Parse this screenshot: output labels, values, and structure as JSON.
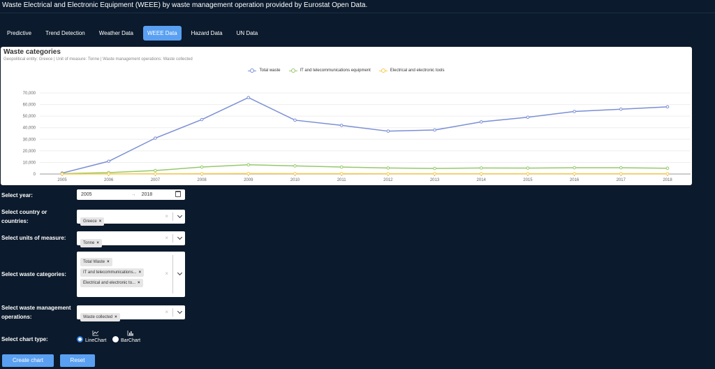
{
  "page_title": "Waste Electrical and Electronic Equipment (WEEE) by waste management operation provided by Eurostat Open Data.",
  "tabs": [
    {
      "label": "Predictive",
      "active": false
    },
    {
      "label": "Trend Detection",
      "active": false
    },
    {
      "label": "Weather Data",
      "active": false
    },
    {
      "label": "WEEE Data",
      "active": true
    },
    {
      "label": "Hazard Data",
      "active": false
    },
    {
      "label": "UN Data",
      "active": false
    }
  ],
  "chart": {
    "title": "Waste categories",
    "subtitle": "Geopolitical entity: Greece | Unit of measure: Tonne | Waste management operations: Waste collected"
  },
  "chart_data": {
    "type": "line",
    "title": "Waste categories",
    "x": [
      "2005",
      "2006",
      "2007",
      "2008",
      "2009",
      "2010",
      "2011",
      "2012",
      "2013",
      "2014",
      "2015",
      "2016",
      "2017",
      "2018"
    ],
    "yticks": [
      "0",
      "10,000",
      "20,000",
      "30,000",
      "40,000",
      "50,000",
      "60,000",
      "70,000"
    ],
    "ylim": [
      0,
      70000
    ],
    "grid": true,
    "legend_position": "top-center",
    "series": [
      {
        "name": "Total waste",
        "color": "#7b8fd4",
        "values": [
          800,
          11000,
          31000,
          47000,
          66000,
          46500,
          42000,
          37000,
          38000,
          45000,
          49000,
          54000,
          56000,
          58000
        ]
      },
      {
        "name": "IT and telecommunications equipment",
        "color": "#95c96b",
        "values": [
          300,
          1200,
          3000,
          6000,
          8000,
          7000,
          6000,
          5200,
          4800,
          5200,
          5100,
          5400,
          5400,
          5000
        ]
      },
      {
        "name": "Electrical and electronic tools",
        "color": "#f7c948",
        "values": [
          0,
          100,
          200,
          300,
          400,
          300,
          300,
          200,
          200,
          200,
          200,
          200,
          200,
          200
        ]
      }
    ]
  },
  "form": {
    "year": {
      "label": "Select year:",
      "start": "2005",
      "arrow": "→",
      "end": "2018"
    },
    "country": {
      "label_line1": "Select country or",
      "label_line2": "countries:",
      "chips": [
        "Greece"
      ]
    },
    "units": {
      "label": "Select units of measure:",
      "chips": [
        "Tonne"
      ]
    },
    "categories": {
      "label": "Select waste categories:",
      "chips": [
        "Total Waste",
        "IT and telecommunications...",
        "Electrical and electronic to..."
      ]
    },
    "operations": {
      "label_line1": "Select waste management",
      "label_line2": "operations:",
      "chips": [
        "Waste collected"
      ]
    },
    "chart_type": {
      "label": "Select chart type:",
      "options": [
        {
          "label": "LineChart",
          "icon": "line-chart-icon",
          "checked": true
        },
        {
          "label": "BarChart",
          "icon": "bar-chart-icon",
          "checked": false
        }
      ]
    },
    "chip_remove": "×",
    "clear": "×"
  },
  "buttons": {
    "create": "Create chart",
    "reset": "Reset"
  }
}
